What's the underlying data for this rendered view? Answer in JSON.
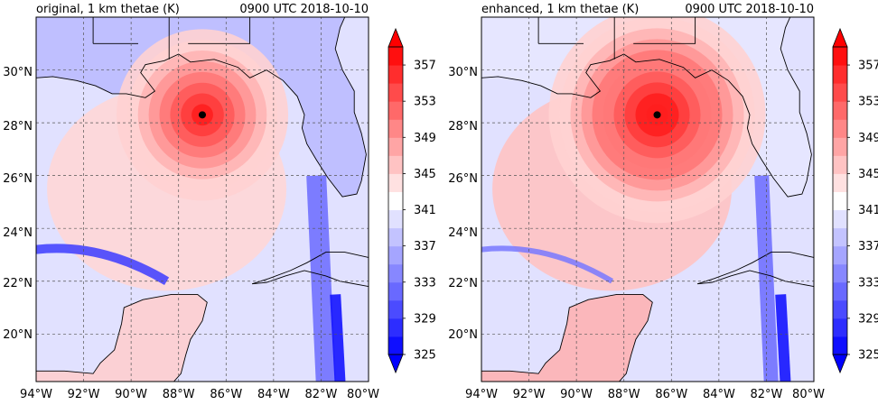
{
  "colors": {
    "title_left": "#ff0000",
    "title_right": "#000000",
    "cold": "#0000ff",
    "neutral": "#ffffff",
    "warm": "#ff0000",
    "grid": "#555555",
    "coast": "#000000",
    "center_marker": "#000000"
  },
  "chart_data": [
    {
      "type": "heatmap",
      "title": "original, 1 km thetae (K)",
      "time_label": "0900 UTC 2018-10-10",
      "xlim": [
        -94,
        -80
      ],
      "ylim": [
        18.2,
        32
      ],
      "xticks": [
        -94,
        -92,
        -90,
        -88,
        -86,
        -84,
        -82,
        -80
      ],
      "xtick_labels": [
        "94°W",
        "92°W",
        "90°W",
        "88°W",
        "86°W",
        "84°W",
        "82°W",
        "80°W"
      ],
      "yticks": [
        20,
        22,
        24,
        26,
        28,
        30
      ],
      "ytick_labels": [
        "20°N",
        "22°N",
        "24°N",
        "26°N",
        "28°N",
        "30°N"
      ],
      "grid": true,
      "storm_center": {
        "lon": -87.0,
        "lat": 28.3
      },
      "colorbar": {
        "levels": [
          325,
          327,
          329,
          331,
          333,
          335,
          337,
          339,
          341,
          343,
          345,
          347,
          349,
          351,
          353,
          355,
          357,
          359
        ],
        "tick_values": [
          325,
          329,
          333,
          337,
          341,
          345,
          349,
          353,
          357
        ],
        "tick_labels": [
          "325",
          "329",
          "333",
          "337",
          "341",
          "345",
          "349",
          "353",
          "357"
        ],
        "extend": "both",
        "cmap": "bwr"
      }
    },
    {
      "type": "heatmap",
      "title": "enhanced, 1 km thetae (K)",
      "time_label": "0900 UTC 2018-10-10",
      "xlim": [
        -94,
        -80
      ],
      "ylim": [
        18.2,
        32
      ],
      "xticks": [
        -94,
        -92,
        -90,
        -88,
        -86,
        -84,
        -82,
        -80
      ],
      "xtick_labels": [
        "94°W",
        "92°W",
        "90°W",
        "88°W",
        "86°W",
        "84°W",
        "82°W",
        "80°W"
      ],
      "yticks": [
        20,
        22,
        24,
        26,
        28,
        30
      ],
      "ytick_labels": [
        "20°N",
        "22°N",
        "24°N",
        "26°N",
        "28°N",
        "30°N"
      ],
      "grid": true,
      "storm_center": {
        "lon": -86.6,
        "lat": 28.3
      },
      "colorbar": {
        "levels": [
          325,
          327,
          329,
          331,
          333,
          335,
          337,
          339,
          341,
          343,
          345,
          347,
          349,
          351,
          353,
          355,
          357,
          359
        ],
        "tick_values": [
          325,
          329,
          333,
          337,
          341,
          345,
          349,
          353,
          357
        ],
        "tick_labels": [
          "325",
          "329",
          "333",
          "337",
          "341",
          "345",
          "349",
          "353",
          "357"
        ],
        "extend": "both",
        "cmap": "bwr"
      }
    }
  ]
}
